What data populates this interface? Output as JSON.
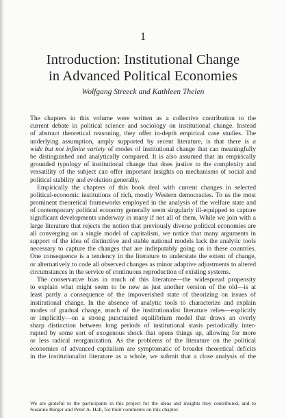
{
  "chapter": {
    "number": "1"
  },
  "title": {
    "line1": "Introduction: Institutional Change",
    "line2": "in Advanced Political Economies"
  },
  "authors": "Wolfgang Streeck and Kathleen Thelen",
  "paragraphs": [
    {
      "lines": [
        "The chapters in this volume were written as a collective contribution to the",
        "current debate in political science and sociology on institutional change. Instead",
        "of abstract theoretical reasoning, they offer in-depth empirical case studies. The",
        "underlying assumption, amply supported by recent literature, is that there is a",
        "wide but not infinite variety of modes of institutional change that can meaningfully",
        "be distinguished and analytically compared. It is also assumed that an empirically",
        "grounded typology of institutional change that does justice to the complexity and",
        "versatility of the subject can offer important insights on mechanisms of social and",
        "political stability and evolution generally."
      ],
      "italic_runs": {
        "line4_italic_end": "a",
        "line5_italic": "wide but not infinite variety",
        "line5_rest": " of modes of institutional change that can meaningfully",
        "line4_plain": "underlying assumption, amply supported by recent literature, is that there is "
      }
    },
    {
      "lines": [
        "Empirically the chapters of this book deal with current changes in selected",
        "political-economic institutions of rich, mostly Western democracies. To us the most",
        "prominent theoretical frameworks employed in the analysis of the welfare state and",
        "of contemporary political economy generally seem singularly ill-equipped to capture",
        "significant developments underway in many if not all of them. While we join with a",
        "large literature that rejects the notion that previously diverse political economies are",
        "all converging on a single model of capitalism, we notice that many arguments in",
        "support of the idea of distinctive and stable national models lack the analytic tools",
        "necessary to capture the changes that are indisputably going on in these countries.",
        "One consequence is a tendency in the literature to understate the extent of change,",
        "or alternatively to code all observed changes as minor adaptive adjustments to altered",
        "circumstances in the service of continuous reproduction of existing systems."
      ]
    },
    {
      "lines": [
        "The conservative bias in much of this literature—the widespread propensity",
        "to explain what might seem to be new as just another version of the old—is at",
        "least partly a consequence of the impoverished state of theorizing on issues of",
        "institutional change. In the absence of analytic tools to characterize and explain",
        "modes of gradual change, much of the institutionalist literature relies—explicitly",
        "or implicitly—on a strong punctuated equilibrium model that draws an overly",
        "sharp distinction between long periods of institutional stasis periodically inter-",
        "rupted by some sort of exogenous shock that opens things up, allowing for more",
        "or less radical reorganization. As the problems of the literature on the political",
        "economies of advanced capitalism are symptomatic of broader theoretical deficits",
        "in the institutionalist literature as a whole, we submit that a close analysis of the"
      ]
    }
  ],
  "footnote": {
    "lines": [
      "We are grateful to the participants in this project for the ideas and insights they contributed, and to",
      "Susanne Berger and Peter A. Hall, for their comments on this chapter."
    ]
  }
}
